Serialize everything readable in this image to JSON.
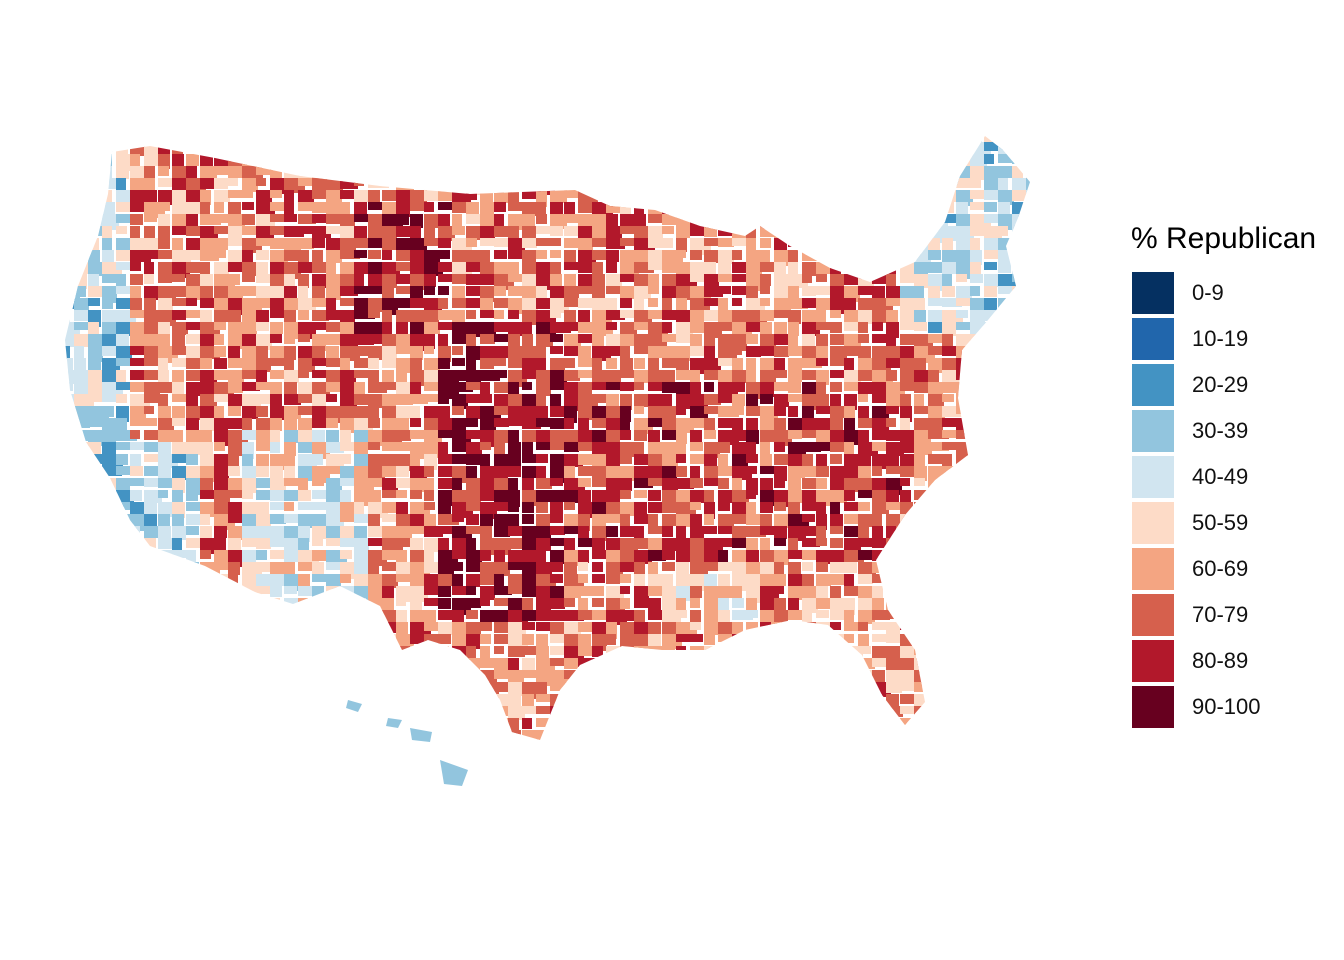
{
  "chart_data": {
    "type": "choropleth",
    "geography": "United States counties",
    "legend": {
      "title": "% Republican",
      "placement": "right",
      "bins": [
        {
          "label": "0-9",
          "color": "#053061"
        },
        {
          "label": "10-19",
          "color": "#2166ac"
        },
        {
          "label": "20-29",
          "color": "#4393c3"
        },
        {
          "label": "30-39",
          "color": "#92c5de"
        },
        {
          "label": "40-49",
          "color": "#d1e5f0"
        },
        {
          "label": "50-59",
          "color": "#fddbc7"
        },
        {
          "label": "60-69",
          "color": "#f4a582"
        },
        {
          "label": "70-79",
          "color": "#d6604d"
        },
        {
          "label": "80-89",
          "color": "#b2182b"
        },
        {
          "label": "90-100",
          "color": "#67001f"
        }
      ]
    },
    "axes": "none",
    "grid": false
  }
}
